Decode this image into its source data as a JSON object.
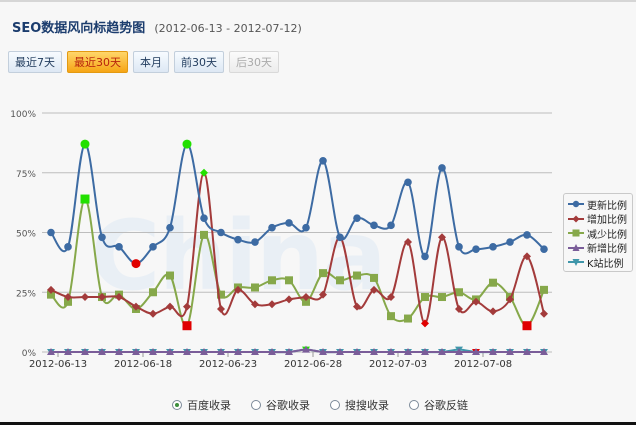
{
  "header": {
    "title": "SEO数据风向标趋势图",
    "date_range": "(2012-06-13 - 2012-07-12)"
  },
  "buttons": [
    {
      "label": "最近7天",
      "state": "normal"
    },
    {
      "label": "最近30天",
      "state": "active"
    },
    {
      "label": "本月",
      "state": "normal"
    },
    {
      "label": "前30天",
      "state": "normal"
    },
    {
      "label": "后30天",
      "state": "disabled"
    }
  ],
  "radios": [
    {
      "label": "百度收录",
      "checked": true
    },
    {
      "label": "谷歌收录",
      "checked": false
    },
    {
      "label": "搜搜收录",
      "checked": false
    },
    {
      "label": "谷歌反链",
      "checked": false
    }
  ],
  "colors": {
    "update": "#3d6ba3",
    "increase": "#a33b3b",
    "decrease": "#86a84a",
    "new": "#7a5d99",
    "k": "#3f96aa",
    "max_marker": "#22e000",
    "min_marker": "#e00000"
  },
  "chart_data": {
    "type": "line",
    "title": "SEO数据风向标趋势图",
    "xlabel": "",
    "ylabel": "",
    "ylim": [
      0,
      100
    ],
    "yticks": [
      "0%",
      "25%",
      "50%",
      "75%",
      "100%"
    ],
    "xtick_labels": [
      "2012-06-13",
      "2012-06-18",
      "2012-06-23",
      "2012-06-28",
      "2012-07-03",
      "2012-07-08"
    ],
    "grid": true,
    "legend_position": "right",
    "x": [
      "06-13",
      "06-14",
      "06-15",
      "06-16",
      "06-17",
      "06-18",
      "06-19",
      "06-20",
      "06-21",
      "06-22",
      "06-23",
      "06-24",
      "06-25",
      "06-26",
      "06-27",
      "06-28",
      "06-29",
      "06-30",
      "07-01",
      "07-02",
      "07-03",
      "07-04",
      "07-05",
      "07-06",
      "07-07",
      "07-08",
      "07-09",
      "07-10",
      "07-11",
      "07-12"
    ],
    "series": [
      {
        "name": "更新比例",
        "values": [
          50,
          44,
          87,
          48,
          44,
          37,
          44,
          52,
          87,
          56,
          50,
          47,
          46,
          52,
          54,
          52,
          80,
          48,
          56,
          53,
          53,
          71,
          40,
          77,
          44,
          43,
          44,
          46,
          49,
          43
        ]
      },
      {
        "name": "增加比例",
        "values": [
          26,
          23,
          23,
          23,
          23,
          19,
          16,
          19,
          19,
          75,
          18,
          26,
          20,
          20,
          22,
          23,
          24,
          48,
          19,
          26,
          23,
          46,
          12,
          48,
          18,
          21,
          17,
          22,
          40,
          16
        ]
      },
      {
        "name": "减少比例",
        "values": [
          24,
          21,
          64,
          23,
          24,
          18,
          25,
          32,
          11,
          49,
          24,
          27,
          27,
          30,
          30,
          21,
          33,
          30,
          32,
          31,
          15,
          14,
          23,
          23,
          25,
          22,
          29,
          23,
          11,
          26
        ]
      },
      {
        "name": "新增比例",
        "values": [
          0,
          0,
          0,
          0,
          0,
          0,
          0,
          0,
          0,
          0,
          0,
          0,
          0,
          0,
          0,
          1,
          0,
          0,
          0,
          0,
          0,
          0,
          0,
          0,
          0,
          0,
          0,
          0,
          0,
          0
        ]
      },
      {
        "name": "K站比例",
        "values": [
          0,
          0,
          0,
          0,
          0,
          0,
          0,
          0,
          0,
          0,
          0,
          0,
          0,
          0,
          0,
          1,
          0,
          0,
          0,
          0,
          0,
          0,
          0,
          0,
          1,
          0,
          0,
          0,
          0,
          0
        ]
      }
    ]
  }
}
